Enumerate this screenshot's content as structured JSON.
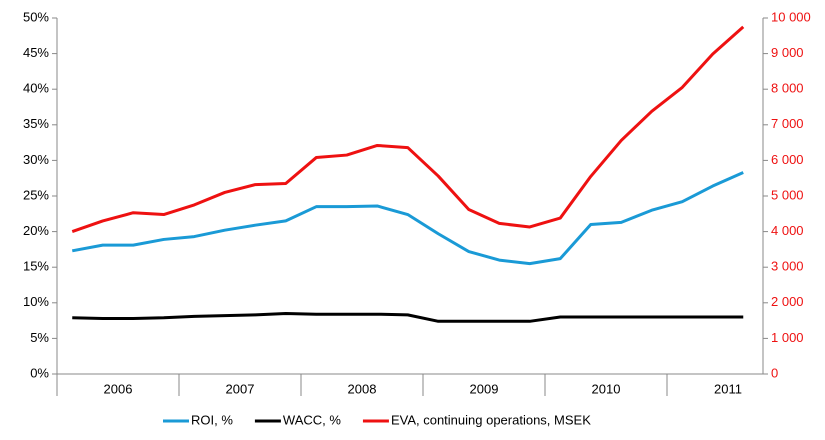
{
  "chart_data": {
    "type": "line",
    "categories": [
      null,
      null,
      null,
      null,
      null,
      null,
      null,
      null,
      null,
      null,
      null,
      null,
      null,
      null,
      null,
      null,
      null,
      null,
      null,
      null,
      null,
      null,
      null
    ],
    "groups": [
      "2006",
      "2007",
      "2008",
      "2009",
      "2010",
      "2011"
    ],
    "series": [
      {
        "name": "ROI, %",
        "color": "#1a9ad6",
        "values": [
          17.3,
          18.1,
          18.1,
          18.9,
          19.3,
          20.2,
          20.9,
          21.5,
          23.5,
          23.5,
          23.6,
          22.4,
          19.7,
          17.2,
          16.0,
          15.5,
          16.2,
          21.0,
          21.3,
          23.0,
          24.2,
          26.4,
          28.3
        ]
      },
      {
        "name": "WACC, %",
        "color": "#000000",
        "values": [
          7.9,
          7.8,
          7.8,
          7.9,
          8.1,
          8.2,
          8.3,
          8.5,
          8.4,
          8.4,
          8.4,
          8.3,
          7.4,
          7.4,
          7.4,
          7.4,
          8.0,
          8.0,
          8.0,
          8.0,
          8.0,
          8.0,
          8.0
        ]
      },
      {
        "name": "EVA, continuing operations, MSEK",
        "color": "#ee1111",
        "axis": "y2",
        "values": [
          4000,
          4300,
          4530,
          4480,
          4750,
          5100,
          5320,
          5350,
          6080,
          6150,
          6420,
          6360,
          5560,
          4620,
          4230,
          4130,
          4380,
          5550,
          6560,
          7380,
          8050,
          8990,
          9750
        ]
      }
    ],
    "ylim": [
      0,
      50
    ],
    "yticks": [
      {
        "value": 0,
        "label": "0%"
      },
      {
        "value": 5,
        "label": "5%"
      },
      {
        "value": 10,
        "label": "10%"
      },
      {
        "value": 15,
        "label": "15%"
      },
      {
        "value": 20,
        "label": "20%"
      },
      {
        "value": 25,
        "label": "25%"
      },
      {
        "value": 30,
        "label": "30%"
      },
      {
        "value": 35,
        "label": "35%"
      },
      {
        "value": 40,
        "label": "40%"
      },
      {
        "value": 45,
        "label": "45%"
      },
      {
        "value": 50,
        "label": "50%"
      }
    ],
    "y2lim": [
      0,
      10000
    ],
    "y2ticks": [
      0,
      {
        "value": 1000,
        "label": "1 000"
      },
      {
        "value": 2000,
        "label": "2 000"
      },
      {
        "value": 3000,
        "label": "3 000"
      },
      {
        "value": 4000,
        "label": "4 000"
      },
      {
        "value": 5000,
        "label": "5 000"
      },
      {
        "value": 6000,
        "label": "6 000"
      },
      {
        "value": 7000,
        "label": "7 000"
      },
      {
        "value": 8000,
        "label": "8 000"
      },
      {
        "value": 9000,
        "label": "9 000"
      },
      {
        "value": 10000,
        "label": "10 000"
      }
    ],
    "y2color": "#ee1111",
    "grid": false,
    "legend": "bottom"
  }
}
